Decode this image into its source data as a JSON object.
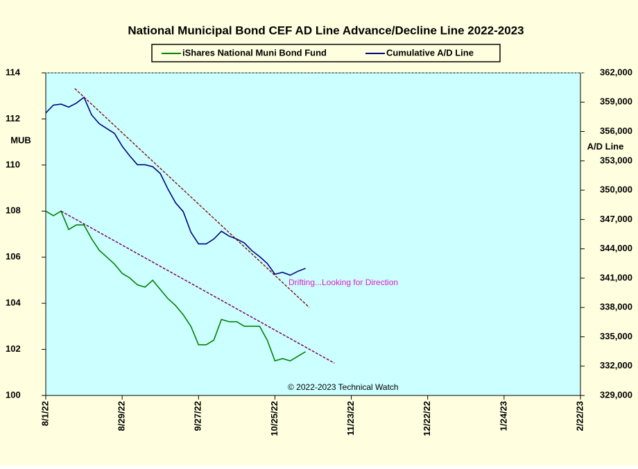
{
  "chart_data": {
    "type": "line",
    "title": "National Municipal Bond CEF AD Line Advance/Decline Line 2022-2023",
    "ylabel": "MUB",
    "y2label": "A/D Line",
    "annotations": [
      "Drifting...Looking for Direction",
      "© 2022-2023 Technical Watch"
    ],
    "legend": "top",
    "background": "#ffffe0",
    "plot_background": "#ccffff",
    "x": [
      0,
      2,
      4,
      6,
      8,
      10,
      12,
      14,
      16,
      18,
      20,
      22,
      24,
      26,
      28,
      30,
      32,
      34,
      36,
      38,
      40,
      42,
      44,
      46,
      48,
      50,
      52,
      54,
      56,
      58,
      60,
      62,
      64,
      66,
      68
    ],
    "xlim": [
      0,
      140
    ],
    "xticks": [
      {
        "value": 0,
        "label": "8/1/22"
      },
      {
        "value": 20,
        "label": "8/29/22"
      },
      {
        "value": 40,
        "label": "9/27/22"
      },
      {
        "value": 60,
        "label": "10/25/22"
      },
      {
        "value": 80,
        "label": "11/23/22"
      },
      {
        "value": 100,
        "label": "12/22/22"
      },
      {
        "value": 120,
        "label": "1/24/23"
      },
      {
        "value": 140,
        "label": "2/22/23"
      }
    ],
    "ylim": [
      100,
      114
    ],
    "yticks": [
      100,
      102,
      104,
      106,
      108,
      110,
      112,
      114
    ],
    "y2lim": [
      329000,
      362000
    ],
    "y2ticks": [
      {
        "value": 329000,
        "label": "329,000"
      },
      {
        "value": 332000,
        "label": "332,000"
      },
      {
        "value": 335000,
        "label": "335,000"
      },
      {
        "value": 338000,
        "label": "338,000"
      },
      {
        "value": 341000,
        "label": "341,000"
      },
      {
        "value": 344000,
        "label": "344,000"
      },
      {
        "value": 347000,
        "label": "347,000"
      },
      {
        "value": 350000,
        "label": "350,000"
      },
      {
        "value": 353000,
        "label": "353,000"
      },
      {
        "value": 356000,
        "label": "356,000"
      },
      {
        "value": 359000,
        "label": "359,000"
      },
      {
        "value": 362000,
        "label": "362,000"
      }
    ],
    "series": [
      {
        "name": "iShares National Muni Bond Fund",
        "color": "#008000",
        "values": [
          108.0,
          107.8,
          108.0,
          107.2,
          107.4,
          107.4,
          106.8,
          106.3,
          106.0,
          105.7,
          105.3,
          105.1,
          104.8,
          104.7,
          105.0,
          104.6,
          104.2,
          103.9,
          103.5,
          103.0,
          102.2,
          102.2,
          102.4,
          103.3,
          103.2,
          103.2,
          103.0,
          103.0,
          103.0,
          102.4,
          101.5,
          101.6,
          101.5,
          101.7,
          101.9
        ]
      },
      {
        "name": "Cumulative A/D Line",
        "color": "#000080",
        "axis": "y2",
        "values": [
          357900,
          358700,
          358800,
          358500,
          358900,
          359500,
          357700,
          356800,
          356300,
          355800,
          354500,
          353500,
          352600,
          352600,
          352400,
          351700,
          350100,
          348700,
          347800,
          345700,
          344500,
          344500,
          345000,
          345800,
          345300,
          345000,
          344600,
          343800,
          343200,
          342500,
          341400,
          341600,
          341300,
          341700,
          342000
        ]
      }
    ],
    "trendlines": [
      {
        "color": "#8b1a1a",
        "axis": "y2",
        "x": [
          7.6,
          69
        ],
        "values": [
          360400,
          338000
        ]
      },
      {
        "color": "#800060",
        "x": [
          4,
          75.6
        ],
        "values": [
          108.0,
          101.4
        ]
      }
    ]
  }
}
